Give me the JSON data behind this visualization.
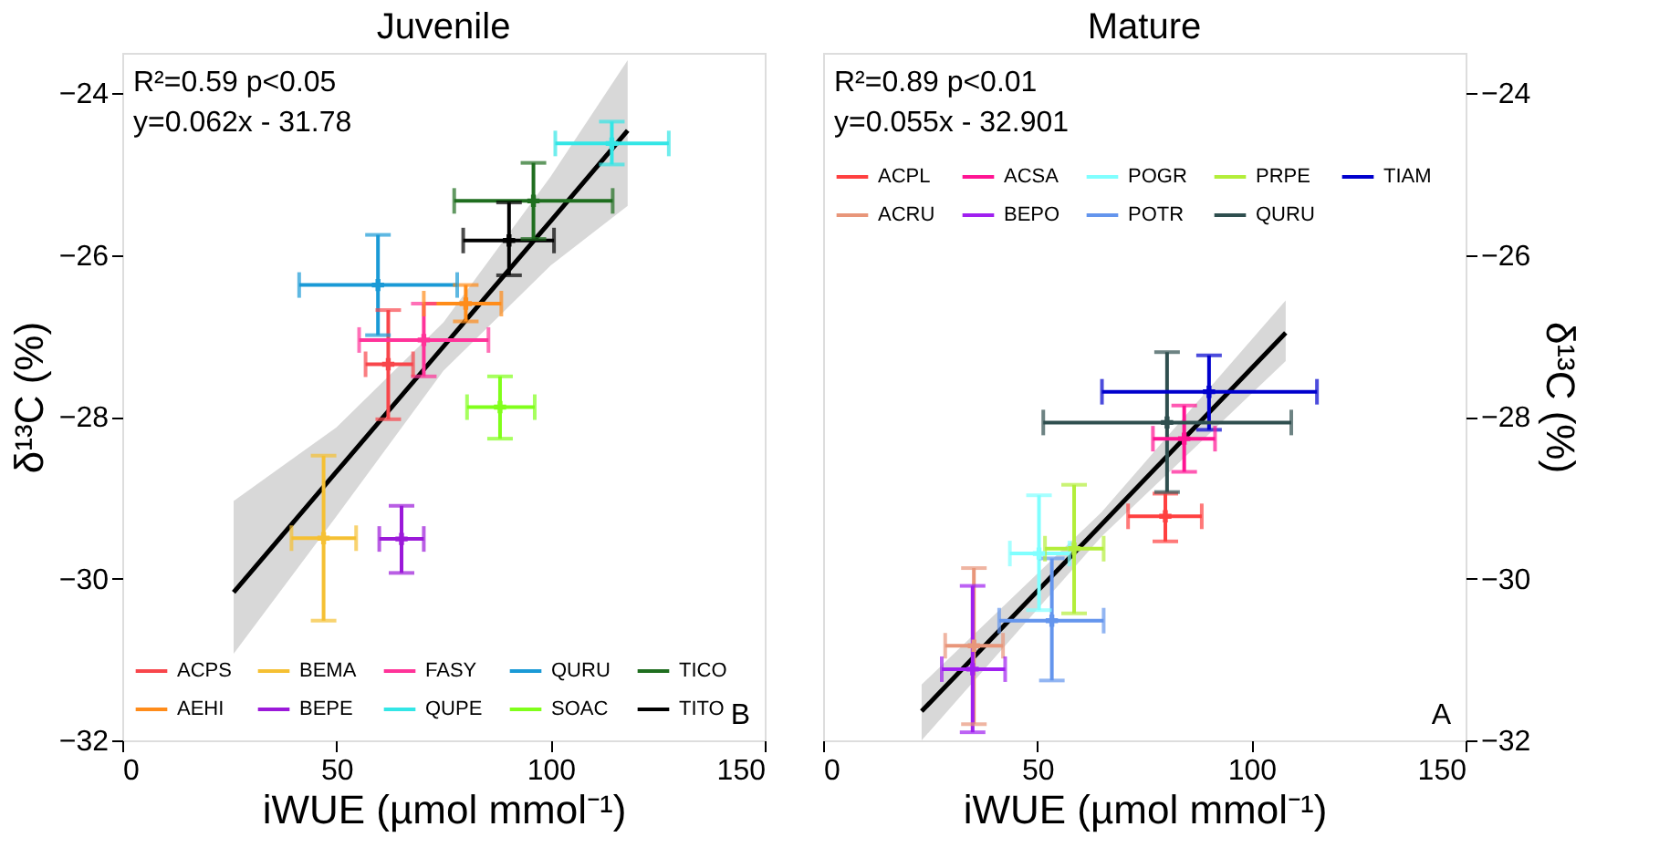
{
  "chart_data": [
    {
      "type": "scatter",
      "title": "Juvenile",
      "xlabel": "iWUE (µmol mmol⁻¹)",
      "ylabel": "δ¹³C (%)",
      "xlim": [
        0,
        150
      ],
      "xticks": [
        0,
        50,
        100,
        150
      ],
      "ylim": [
        -32,
        -23.5
      ],
      "yticks": [
        -32,
        -30,
        -28,
        -26,
        -24
      ],
      "grid": false,
      "marker": "cross",
      "legend": "bottom left",
      "annotations": [
        "R²=0.59 p<0.05",
        "y=0.062x - 31.78",
        "B"
      ],
      "series": [
        {
          "name": "ACPS",
          "color": "#f8464b",
          "x": [
            62.1
          ],
          "values": [
            -27.35
          ],
          "xerrors": [
            [
              56.8,
              67.9
            ]
          ],
          "errors": [
            [
              -28.03,
              -26.68
            ]
          ]
        },
        {
          "name": "AEHI",
          "color": "#ff8c1a",
          "x": [
            80.2
          ],
          "values": [
            -26.6
          ],
          "xerrors": [
            [
              70.4,
              88.5
            ]
          ],
          "errors": [
            [
              -26.82,
              -26.37
            ]
          ]
        },
        {
          "name": "BEMA",
          "color": "#f5c033",
          "x": [
            47.0
          ],
          "values": [
            -29.5
          ],
          "xerrors": [
            [
              39.5,
              54.6
            ]
          ],
          "errors": [
            [
              -30.52,
              -28.48
            ]
          ]
        },
        {
          "name": "BEPE",
          "color": "#9b19d9",
          "x": [
            65.2
          ],
          "values": [
            -29.51
          ],
          "xerrors": [
            [
              60.0,
              70.4
            ]
          ],
          "errors": [
            [
              -29.93,
              -29.1
            ]
          ]
        },
        {
          "name": "FASY",
          "color": "#ff3399",
          "x": [
            70.4
          ],
          "values": [
            -27.05
          ],
          "xerrors": [
            [
              55.3,
              85.5
            ]
          ],
          "errors": [
            [
              -27.5,
              -26.6
            ]
          ]
        },
        {
          "name": "QUPE",
          "color": "#33e6e6",
          "x": [
            114.3
          ],
          "values": [
            -24.62
          ],
          "xerrors": [
            [
              101.1,
              127.6
            ]
          ],
          "errors": [
            [
              -24.88,
              -24.35
            ]
          ]
        },
        {
          "name": "QURU",
          "color": "#1a9ad6",
          "x": [
            59.7
          ],
          "values": [
            -26.37
          ],
          "xerrors": [
            [
              41.3,
              78.2
            ]
          ],
          "errors": [
            [
              -26.99,
              -25.75
            ]
          ]
        },
        {
          "name": "SOAC",
          "color": "#80ff1a",
          "x": [
            88.2
          ],
          "values": [
            -27.88
          ],
          "xerrors": [
            [
              80.5,
              96.3
            ]
          ],
          "errors": [
            [
              -28.27,
              -27.5
            ]
          ]
        },
        {
          "name": "TICO",
          "color": "#1f6e1f",
          "x": [
            96.0
          ],
          "values": [
            -25.33
          ],
          "xerrors": [
            [
              77.5,
              114.5
            ]
          ],
          "errors": [
            [
              -25.8,
              -24.86
            ]
          ]
        },
        {
          "name": "TITO",
          "color": "#000000",
          "x": [
            90.3
          ],
          "values": [
            -25.82
          ],
          "xerrors": [
            [
              79.6,
              100.8
            ]
          ],
          "errors": [
            [
              -26.25,
              -25.35
            ]
          ]
        },
        {
          "type": "line",
          "marker": "none",
          "color": "#000000",
          "x": [
            26,
            50,
            75,
            100,
            118
          ],
          "values": [
            -30.17,
            -28.68,
            -27.13,
            -25.58,
            -24.46
          ],
          "lower": [
            -30.93,
            -29.23,
            -27.43,
            -26.13,
            -25.39
          ],
          "upper": [
            -29.04,
            -28.13,
            -26.83,
            -25.03,
            -23.59
          ]
        }
      ]
    },
    {
      "type": "scatter",
      "title": "Mature",
      "xlabel": "iWUE (µmol mmol⁻¹)",
      "y2label": "δ¹³C (%)",
      "xlim": [
        0,
        150
      ],
      "xticks": [
        0,
        50,
        100,
        150
      ],
      "y2lim": [
        -32,
        -23.5
      ],
      "y2ticks": [
        -32,
        -30,
        -28,
        -26,
        -24
      ],
      "grid": false,
      "marker": "cross",
      "legend": "top left",
      "annotations": [
        "R²=0.89 p<0.01",
        "y=0.055x - 32.901",
        "A"
      ],
      "series": [
        {
          "name": "ACPL",
          "color": "#ff4040",
          "axis": "y2",
          "x": [
            79.9
          ],
          "values": [
            -29.23
          ],
          "xerrors": [
            [
              71.2,
              88.4
            ]
          ],
          "errors": [
            [
              -29.54,
              -28.95
            ]
          ]
        },
        {
          "name": "ACRU",
          "color": "#e8967a",
          "axis": "y2",
          "x": [
            35.2
          ],
          "values": [
            -30.83
          ],
          "xerrors": [
            [
              28.5,
              42.0
            ]
          ],
          "errors": [
            [
              -31.8,
              -29.87
            ]
          ]
        },
        {
          "name": "ACSA",
          "color": "#ff1493",
          "axis": "y2",
          "x": [
            84.3
          ],
          "values": [
            -28.27
          ],
          "xerrors": [
            [
              77.0,
              91.5
            ]
          ],
          "errors": [
            [
              -28.68,
              -27.86
            ]
          ]
        },
        {
          "name": "BEPO",
          "color": "#a020f0",
          "axis": "y2",
          "x": [
            34.9
          ],
          "values": [
            -31.12
          ],
          "xerrors": [
            [
              27.7,
              42.5
            ]
          ],
          "errors": [
            [
              -31.9,
              -30.09
            ]
          ]
        },
        {
          "name": "POGR",
          "color": "#80ffff",
          "axis": "y2",
          "x": [
            50.4
          ],
          "values": [
            -29.69
          ],
          "xerrors": [
            [
              43.6,
              57.5
            ]
          ],
          "errors": [
            [
              -30.39,
              -28.97
            ]
          ]
        },
        {
          "name": "POTR",
          "color": "#6495ed",
          "axis": "y2",
          "x": [
            53.4
          ],
          "values": [
            -30.52
          ],
          "xerrors": [
            [
              41.1,
              65.5
            ]
          ],
          "errors": [
            [
              -31.26,
              -29.75
            ]
          ]
        },
        {
          "name": "PRPE",
          "color": "#b3ee3a",
          "axis": "y2",
          "x": [
            58.6
          ],
          "values": [
            -29.63
          ],
          "xerrors": [
            [
              51.8,
              65.5
            ]
          ],
          "errors": [
            [
              -30.43,
              -28.84
            ]
          ]
        },
        {
          "name": "QURU",
          "color": "#2f4f4f",
          "axis": "y2",
          "x": [
            80.3
          ],
          "values": [
            -28.07
          ],
          "xerrors": [
            [
              51.4,
              109.3
            ]
          ],
          "errors": [
            [
              -28.93,
              -27.2
            ]
          ]
        },
        {
          "name": "TIAM",
          "color": "#0000cd",
          "axis": "y2",
          "x": [
            90.1
          ],
          "values": [
            -27.69
          ],
          "xerrors": [
            [
              65.1,
              115.3
            ]
          ],
          "errors": [
            [
              -28.16,
              -27.24
            ]
          ]
        },
        {
          "type": "line",
          "marker": "none",
          "color": "#000000",
          "axis": "y2",
          "x": [
            23,
            65,
            108
          ],
          "values": [
            -31.64,
            -29.33,
            -26.96
          ],
          "lower": [
            -32.0,
            -29.48,
            -27.31
          ],
          "upper": [
            -31.31,
            -29.18,
            -26.56
          ]
        }
      ]
    }
  ]
}
